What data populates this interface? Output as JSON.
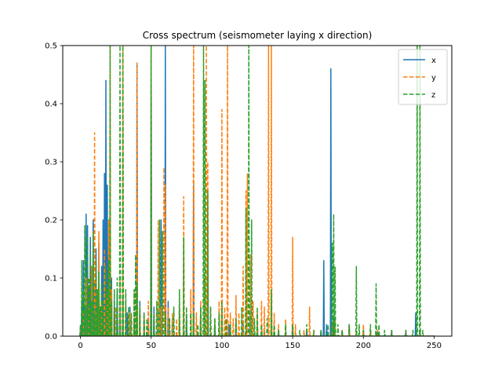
{
  "chart_data": {
    "type": "line",
    "title": "Cross spectrum (seismometer laying x direction)",
    "xlabel": "",
    "ylabel": "",
    "xlim": [
      -12.5,
      262.5
    ],
    "ylim": [
      0,
      0.5
    ],
    "xticks": [
      0,
      50,
      100,
      150,
      200,
      250
    ],
    "yticks": [
      0.0,
      0.1,
      0.2,
      0.3,
      0.4,
      0.5
    ],
    "xtick_labels": [
      "0",
      "50",
      "100",
      "150",
      "200",
      "250"
    ],
    "ytick_labels": [
      "0.0",
      "0.1",
      "0.2",
      "0.3",
      "0.4",
      "0.5"
    ],
    "grid": false,
    "legend": "top-right",
    "series": [
      {
        "name": "x",
        "color": "#1f77b4",
        "dash": "solid",
        "peaks": [
          [
            0,
            0.01
          ],
          [
            1,
            0.06
          ],
          [
            2,
            0.13
          ],
          [
            3,
            0.05
          ],
          [
            4,
            0.21
          ],
          [
            5,
            0.19
          ],
          [
            6,
            0.08
          ],
          [
            7,
            0.17
          ],
          [
            8,
            0.12
          ],
          [
            9,
            0.2
          ],
          [
            10,
            0.09
          ],
          [
            11,
            0.15
          ],
          [
            12,
            0.07
          ],
          [
            13,
            0.16
          ],
          [
            14,
            0.05
          ],
          [
            15,
            0.12
          ],
          [
            16,
            0.2
          ],
          [
            17,
            0.28
          ],
          [
            18,
            0.44
          ],
          [
            19,
            0.26
          ],
          [
            20,
            0.14
          ],
          [
            22,
            0.1
          ],
          [
            24,
            0.06
          ],
          [
            26,
            0.08
          ],
          [
            28,
            0.05
          ],
          [
            30,
            0.07
          ],
          [
            33,
            0.04
          ],
          [
            35,
            0.05
          ],
          [
            38,
            0.03
          ],
          [
            40,
            0.47
          ],
          [
            42,
            0.06
          ],
          [
            45,
            0.04
          ],
          [
            48,
            0.03
          ],
          [
            50,
            0.5
          ],
          [
            52,
            0.05
          ],
          [
            55,
            0.04
          ],
          [
            57,
            0.2
          ],
          [
            60,
            0.5
          ],
          [
            62,
            0.06
          ],
          [
            65,
            0.03
          ],
          [
            70,
            0.02
          ],
          [
            75,
            0.03
          ],
          [
            80,
            0.26
          ],
          [
            85,
            0.05
          ],
          [
            90,
            0.19
          ],
          [
            95,
            0.02
          ],
          [
            100,
            0.04
          ],
          [
            105,
            0.02
          ],
          [
            110,
            0.03
          ],
          [
            115,
            0.02
          ],
          [
            120,
            0.04
          ],
          [
            125,
            0.02
          ],
          [
            130,
            0.01
          ],
          [
            140,
            0.01
          ],
          [
            150,
            0.02
          ],
          [
            160,
            0.01
          ],
          [
            170,
            0.01
          ],
          [
            172,
            0.13
          ],
          [
            174,
            0.02
          ],
          [
            177,
            0.46
          ],
          [
            179,
            0.03
          ],
          [
            185,
            0.01
          ],
          [
            190,
            0.02
          ],
          [
            200,
            0.01
          ],
          [
            210,
            0.01
          ],
          [
            220,
            0.01
          ],
          [
            230,
            0.01
          ],
          [
            237,
            0.04
          ],
          [
            240,
            0.01
          ],
          [
            250,
            0.0
          ]
        ]
      },
      {
        "name": "y",
        "color": "#ff7f0e",
        "dash": "dashed",
        "peaks": [
          [
            0,
            0.01
          ],
          [
            2,
            0.04
          ],
          [
            4,
            0.1
          ],
          [
            6,
            0.05
          ],
          [
            8,
            0.12
          ],
          [
            10,
            0.35
          ],
          [
            11,
            0.1
          ],
          [
            13,
            0.18
          ],
          [
            15,
            0.06
          ],
          [
            17,
            0.15
          ],
          [
            19,
            0.07
          ],
          [
            20,
            0.2
          ],
          [
            21,
            0.5
          ],
          [
            22,
            0.08
          ],
          [
            25,
            0.05
          ],
          [
            28,
            0.1
          ],
          [
            30,
            0.5
          ],
          [
            32,
            0.06
          ],
          [
            35,
            0.04
          ],
          [
            38,
            0.08
          ],
          [
            40,
            0.47
          ],
          [
            42,
            0.05
          ],
          [
            45,
            0.03
          ],
          [
            48,
            0.06
          ],
          [
            50,
            0.5
          ],
          [
            52,
            0.04
          ],
          [
            55,
            0.2
          ],
          [
            57,
            0.05
          ],
          [
            59,
            0.29
          ],
          [
            60,
            0.26
          ],
          [
            62,
            0.05
          ],
          [
            65,
            0.04
          ],
          [
            68,
            0.03
          ],
          [
            70,
            0.05
          ],
          [
            73,
            0.24
          ],
          [
            75,
            0.04
          ],
          [
            78,
            0.08
          ],
          [
            80,
            0.5
          ],
          [
            82,
            0.04
          ],
          [
            85,
            0.06
          ],
          [
            88,
            0.1
          ],
          [
            89,
            0.5
          ],
          [
            90,
            0.3
          ],
          [
            92,
            0.05
          ],
          [
            95,
            0.03
          ],
          [
            98,
            0.06
          ],
          [
            100,
            0.39
          ],
          [
            102,
            0.05
          ],
          [
            104,
            0.5
          ],
          [
            106,
            0.04
          ],
          [
            108,
            0.03
          ],
          [
            110,
            0.07
          ],
          [
            112,
            0.04
          ],
          [
            115,
            0.12
          ],
          [
            117,
            0.25
          ],
          [
            118,
            0.28
          ],
          [
            120,
            0.14
          ],
          [
            122,
            0.06
          ],
          [
            125,
            0.04
          ],
          [
            128,
            0.06
          ],
          [
            130,
            0.05
          ],
          [
            133,
            0.5
          ],
          [
            135,
            0.5
          ],
          [
            137,
            0.04
          ],
          [
            140,
            0.02
          ],
          [
            145,
            0.03
          ],
          [
            150,
            0.17
          ],
          [
            152,
            0.02
          ],
          [
            158,
            0.01
          ],
          [
            162,
            0.05
          ],
          [
            165,
            0.01
          ],
          [
            170,
            0.01
          ],
          [
            178,
            0.02
          ],
          [
            180,
            0.03
          ],
          [
            185,
            0.01
          ],
          [
            190,
            0.02
          ],
          [
            195,
            0.01
          ],
          [
            200,
            0.02
          ],
          [
            205,
            0.01
          ],
          [
            210,
            0.01
          ],
          [
            220,
            0.01
          ],
          [
            230,
            0.01
          ],
          [
            240,
            0.01
          ],
          [
            250,
            0.0
          ]
        ]
      },
      {
        "name": "z",
        "color": "#2ca02c",
        "dash": "dashed",
        "peaks": [
          [
            0,
            0.02
          ],
          [
            1,
            0.13
          ],
          [
            2,
            0.08
          ],
          [
            3,
            0.19
          ],
          [
            4,
            0.05
          ],
          [
            5,
            0.17
          ],
          [
            6,
            0.1
          ],
          [
            7,
            0.14
          ],
          [
            8,
            0.06
          ],
          [
            9,
            0.18
          ],
          [
            10,
            0.04
          ],
          [
            11,
            0.13
          ],
          [
            12,
            0.08
          ],
          [
            13,
            0.11
          ],
          [
            14,
            0.05
          ],
          [
            15,
            0.09
          ],
          [
            16,
            0.06
          ],
          [
            18,
            0.12
          ],
          [
            19,
            0.08
          ],
          [
            20,
            0.13
          ],
          [
            21,
            0.5
          ],
          [
            22,
            0.06
          ],
          [
            24,
            0.08
          ],
          [
            26,
            0.1
          ],
          [
            28,
            0.5
          ],
          [
            30,
            0.5
          ],
          [
            32,
            0.08
          ],
          [
            34,
            0.05
          ],
          [
            36,
            0.04
          ],
          [
            38,
            0.08
          ],
          [
            39,
            0.14
          ],
          [
            40,
            0.09
          ],
          [
            42,
            0.05
          ],
          [
            45,
            0.04
          ],
          [
            47,
            0.03
          ],
          [
            50,
            0.5
          ],
          [
            52,
            0.04
          ],
          [
            54,
            0.06
          ],
          [
            56,
            0.2
          ],
          [
            58,
            0.18
          ],
          [
            60,
            0.04
          ],
          [
            63,
            0.03
          ],
          [
            66,
            0.05
          ],
          [
            70,
            0.08
          ],
          [
            73,
            0.17
          ],
          [
            75,
            0.05
          ],
          [
            78,
            0.04
          ],
          [
            80,
            0.04
          ],
          [
            83,
            0.02
          ],
          [
            85,
            0.05
          ],
          [
            87,
            0.5
          ],
          [
            88,
            0.44
          ],
          [
            90,
            0.25
          ],
          [
            92,
            0.05
          ],
          [
            95,
            0.03
          ],
          [
            98,
            0.04
          ],
          [
            100,
            0.06
          ],
          [
            103,
            0.03
          ],
          [
            106,
            0.02
          ],
          [
            110,
            0.03
          ],
          [
            114,
            0.05
          ],
          [
            117,
            0.22
          ],
          [
            119,
            0.5
          ],
          [
            121,
            0.2
          ],
          [
            123,
            0.03
          ],
          [
            125,
            0.05
          ],
          [
            128,
            0.02
          ],
          [
            132,
            0.03
          ],
          [
            135,
            0.08
          ],
          [
            137,
            0.02
          ],
          [
            140,
            0.01
          ],
          [
            145,
            0.02
          ],
          [
            150,
            0.02
          ],
          [
            155,
            0.01
          ],
          [
            160,
            0.02
          ],
          [
            165,
            0.01
          ],
          [
            170,
            0.01
          ],
          [
            175,
            0.02
          ],
          [
            178,
            0.16
          ],
          [
            179,
            0.21
          ],
          [
            180,
            0.12
          ],
          [
            182,
            0.02
          ],
          [
            185,
            0.01
          ],
          [
            190,
            0.02
          ],
          [
            195,
            0.12
          ],
          [
            197,
            0.02
          ],
          [
            200,
            0.01
          ],
          [
            205,
            0.02
          ],
          [
            209,
            0.09
          ],
          [
            211,
            0.02
          ],
          [
            215,
            0.01
          ],
          [
            220,
            0.01
          ],
          [
            230,
            0.01
          ],
          [
            235,
            0.01
          ],
          [
            238,
            0.5
          ],
          [
            240,
            0.5
          ],
          [
            242,
            0.01
          ],
          [
            250,
            0.0
          ]
        ]
      }
    ]
  }
}
